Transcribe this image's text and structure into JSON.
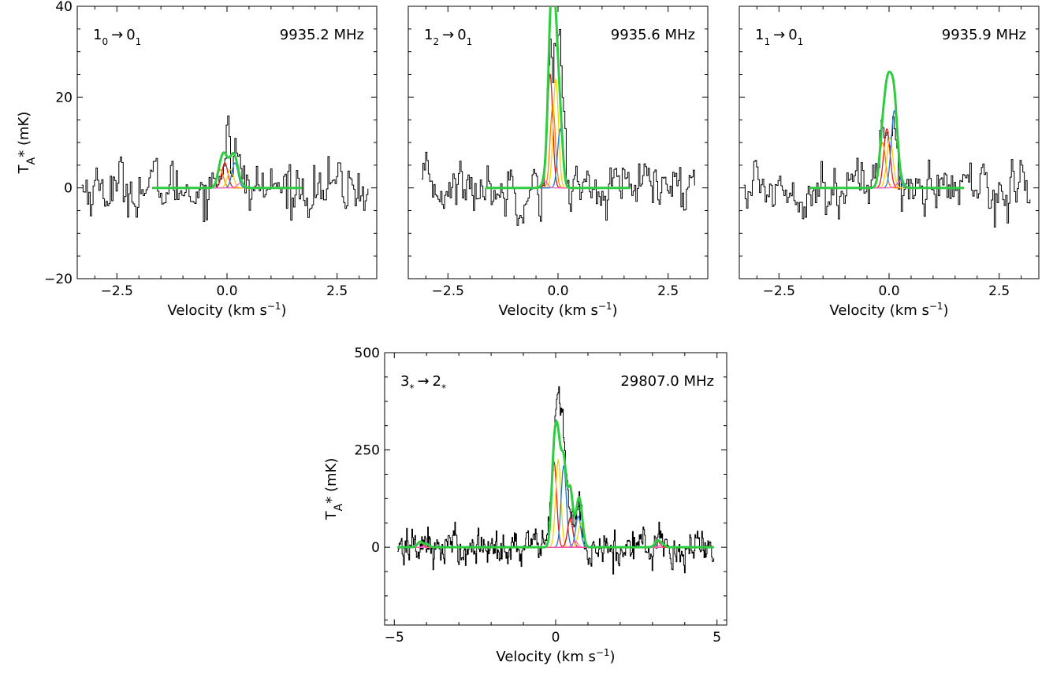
{
  "figure": {
    "xlabel": "Velocity (km s",
    "xlabel_sup": "−1",
    "xlabel_close": ")",
    "ylabel_main": "T",
    "ylabel_sub": "A",
    "ylabel_rest": "* (mK)"
  },
  "chart_data": [
    {
      "type": "line",
      "transition": {
        "main": "1",
        "sub": "0",
        "arrow": "→",
        "main2": "0",
        "sub2": "1"
      },
      "frequency": "9935.2 MHz",
      "xlim": [
        -3.4,
        3.4
      ],
      "ylim": [
        -20,
        40
      ],
      "xticks": [
        -2.5,
        0.0,
        2.5
      ],
      "xtick_labels": [
        "−2.5",
        "0.0",
        "2.5"
      ],
      "yticks": [
        -20,
        0,
        20,
        40
      ],
      "ytick_labels": [
        "−20",
        "0",
        "20",
        "40"
      ],
      "y_labeled": true,
      "spectrum": {
        "x_range": [
          -3.3,
          3.2
        ],
        "noise_rms": 2.7,
        "peaks": [
          {
            "x": 0.0,
            "amp": 14,
            "w": 0.05
          },
          {
            "x": 0.17,
            "amp": 7,
            "w": 0.09
          },
          {
            "x": -0.12,
            "amp": 4,
            "w": 0.08
          }
        ]
      },
      "fit_range": [
        -1.7,
        1.7
      ],
      "components": [
        {
          "color": "#e31a1c",
          "x": -0.05,
          "amp": 5.5,
          "sigma": 0.07
        },
        {
          "color": "#ff7f00",
          "x": -0.15,
          "amp": 4.0,
          "sigma": 0.07
        },
        {
          "color": "#f5d300",
          "x": 0.08,
          "amp": 4.0,
          "sigma": 0.07
        },
        {
          "color": "#1f78d4",
          "x": 0.18,
          "amp": 5.5,
          "sigma": 0.07
        },
        {
          "color": "#ff66cc",
          "x": 0.3,
          "amp": 1.0,
          "sigma": 0.07
        }
      ],
      "fit_color": "#2ecc40"
    },
    {
      "type": "line",
      "transition": {
        "main": "1",
        "sub": "2",
        "arrow": "→",
        "main2": "0",
        "sub2": "1"
      },
      "frequency": "9935.6 MHz",
      "xlim": [
        -3.4,
        3.4
      ],
      "ylim": [
        -20,
        40
      ],
      "xticks": [
        -2.5,
        0.0,
        2.5
      ],
      "xtick_labels": [
        "−2.5",
        "0.0",
        "2.5"
      ],
      "yticks": [
        -20,
        0,
        20,
        40
      ],
      "ytick_labels": [
        "",
        "",
        "",
        ""
      ],
      "y_labeled": false,
      "spectrum": {
        "x_range": [
          -3.1,
          3.1
        ],
        "noise_rms": 2.6,
        "peaks": [
          {
            "x": -0.2,
            "amp": 25,
            "w": 0.07
          },
          {
            "x": 0.0,
            "amp": 32,
            "w": 0.1
          }
        ]
      },
      "fit_range": [
        -1.65,
        1.65
      ],
      "components": [
        {
          "color": "#e31a1c",
          "x": -0.18,
          "amp": 25.0,
          "sigma": 0.06
        },
        {
          "color": "#ff7f00",
          "x": -0.12,
          "amp": 18.0,
          "sigma": 0.06
        },
        {
          "color": "#f5d300",
          "x": -0.05,
          "amp": 24.0,
          "sigma": 0.06
        },
        {
          "color": "#1f78d4",
          "x": 0.05,
          "amp": 13.0,
          "sigma": 0.06
        },
        {
          "color": "#ff66cc",
          "x": -0.3,
          "amp": 1.5,
          "sigma": 0.06
        }
      ],
      "fit_color": "#2ecc40"
    },
    {
      "type": "line",
      "transition": {
        "main": "1",
        "sub": "1",
        "arrow": "→",
        "main2": "0",
        "sub2": "1"
      },
      "frequency": "9935.9 MHz",
      "xlim": [
        -3.4,
        3.4
      ],
      "ylim": [
        -20,
        40
      ],
      "xticks": [
        -2.5,
        0.0,
        2.5
      ],
      "xtick_labels": [
        "−2.5",
        "0.0",
        "2.5"
      ],
      "yticks": [
        -20,
        0,
        20,
        40
      ],
      "ytick_labels": [
        "",
        "",
        "",
        ""
      ],
      "y_labeled": false,
      "spectrum": {
        "x_range": [
          -3.3,
          3.2
        ],
        "noise_rms": 2.6,
        "peaks": [
          {
            "x": -0.15,
            "amp": 15,
            "w": 0.1
          },
          {
            "x": 0.1,
            "amp": 16,
            "w": 0.06
          }
        ]
      },
      "fit_range": [
        -1.8,
        1.7
      ],
      "components": [
        {
          "color": "#e31a1c",
          "x": -0.05,
          "amp": 13.0,
          "sigma": 0.07
        },
        {
          "color": "#ff7f00",
          "x": -0.15,
          "amp": 10.0,
          "sigma": 0.07
        },
        {
          "color": "#f5d300",
          "x": 0.02,
          "amp": 11.0,
          "sigma": 0.07
        },
        {
          "color": "#1f78d4",
          "x": 0.12,
          "amp": 17.0,
          "sigma": 0.07
        },
        {
          "color": "#ff66cc",
          "x": 0.25,
          "amp": 1.5,
          "sigma": 0.07
        }
      ],
      "fit_color": "#2ecc40"
    },
    {
      "type": "line",
      "transition": {
        "main": "3",
        "sub": "*",
        "arrow": "→",
        "main2": "2",
        "sub2": "*"
      },
      "frequency": "29807.0 MHz",
      "xlim": [
        -5.3,
        5.3
      ],
      "ylim": [
        -200,
        500
      ],
      "xticks": [
        -5,
        0,
        5
      ],
      "xtick_labels": [
        "−5",
        "0",
        "5"
      ],
      "yticks": [
        0,
        250,
        500
      ],
      "ytick_labels": [
        "0",
        "250",
        "500"
      ],
      "y_labeled": true,
      "spectrum": {
        "x_range": [
          -4.9,
          4.9
        ],
        "noise_rms": 22,
        "peaks": [
          {
            "x": 0.1,
            "amp": 380,
            "w": 0.18
          },
          {
            "x": 0.7,
            "amp": 100,
            "w": 0.12
          },
          {
            "x": 3.2,
            "amp": 30,
            "w": 0.1
          },
          {
            "x": -4.1,
            "amp": 15,
            "w": 0.1
          }
        ]
      },
      "fit_range": [
        -4.9,
        4.9
      ],
      "components": [
        {
          "color": "#e31a1c",
          "x": -0.05,
          "amp": 220.0,
          "sigma": 0.08
        },
        {
          "color": "#f5d300",
          "x": 0.08,
          "amp": 225.0,
          "sigma": 0.08
        },
        {
          "color": "#1f78d4",
          "x": 0.25,
          "amp": 210.0,
          "sigma": 0.08
        },
        {
          "color": "#ff7f00",
          "x": 0.45,
          "amp": 70.0,
          "sigma": 0.08
        },
        {
          "color": "#e31a1c",
          "x": 0.45,
          "amp": 75.0,
          "sigma": 0.08
        },
        {
          "color": "#1f78d4",
          "x": 0.7,
          "amp": 80.0,
          "sigma": 0.08
        },
        {
          "color": "#f5d300",
          "x": 0.78,
          "amp": 60.0,
          "sigma": 0.08
        },
        {
          "color": "#ff66cc",
          "x": 0.6,
          "amp": 15.0,
          "sigma": 0.08
        },
        {
          "color": "#e31a1c",
          "x": -4.2,
          "amp": 14.0,
          "sigma": 0.08
        },
        {
          "color": "#ff66cc",
          "x": -4.0,
          "amp": 8.0,
          "sigma": 0.08
        },
        {
          "color": "#e31a1c",
          "x": 3.15,
          "amp": 16.0,
          "sigma": 0.08
        },
        {
          "color": "#ff66cc",
          "x": 3.3,
          "amp": 8.0,
          "sigma": 0.08
        }
      ],
      "fit_color": "#2ecc40"
    }
  ]
}
